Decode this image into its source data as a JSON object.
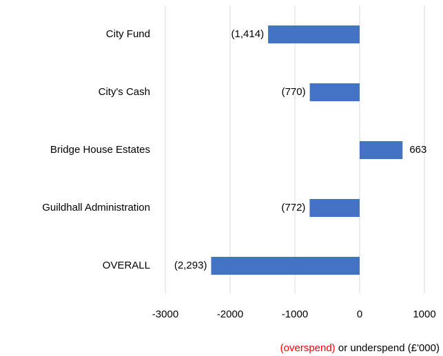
{
  "chart_data": {
    "type": "hbar",
    "categories": [
      "City Fund",
      "City's Cash",
      "Bridge House Estates",
      "Guildhall Administration",
      "OVERALL"
    ],
    "values": [
      -1414,
      -770,
      663,
      -772,
      -2293
    ],
    "value_labels": [
      "(1,414)",
      "(770)",
      "663",
      "(772)",
      "(2,293)"
    ],
    "color": "#4472c4",
    "negative_label_color": "#ff0000",
    "xlim": [
      -3000,
      1000
    ],
    "xticks": [
      -3000,
      -2000,
      -1000,
      0,
      1000
    ],
    "grid": true,
    "x_label_parts": [
      "(overspend)",
      "or underspend (£'000)"
    ]
  }
}
